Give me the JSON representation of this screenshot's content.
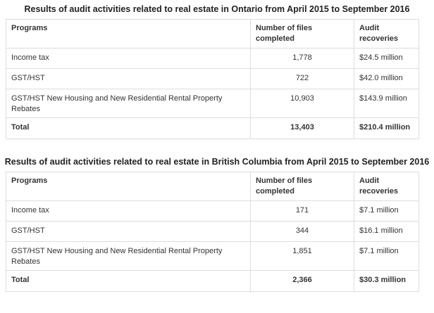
{
  "tables": [
    {
      "title": "Results of audit activities related to real estate in Ontario from April 2015 to September 2016",
      "headers": [
        "Programs",
        "Number of files completed",
        "Audit recoveries"
      ],
      "rows": [
        {
          "program": "Income tax",
          "files": "1,778",
          "recoveries": "$24.5 million"
        },
        {
          "program": "GST/HST",
          "files": "722",
          "recoveries": "$42.0 million"
        },
        {
          "program": "GST/HST New Housing and New Residential Rental Property Rebates",
          "files": "10,903",
          "recoveries": "$143.9 million"
        }
      ],
      "total": {
        "label": "Total",
        "files": "13,403",
        "recoveries": "$210.4 million"
      }
    },
    {
      "title": "Results of audit activities related to real estate in British Columbia from April 2015 to September 2016",
      "headers": [
        "Programs",
        "Number of files completed",
        "Audit recoveries"
      ],
      "rows": [
        {
          "program": "Income tax",
          "files": "171",
          "recoveries": "$7.1 million"
        },
        {
          "program": "GST/HST",
          "files": "344",
          "recoveries": "$16.1 million"
        },
        {
          "program": "GST/HST New Housing and New Residential Rental Property Rebates",
          "files": "1,851",
          "recoveries": "$7.1 million"
        }
      ],
      "total": {
        "label": "Total",
        "files": "2,366",
        "recoveries": "$30.3 million"
      }
    }
  ]
}
